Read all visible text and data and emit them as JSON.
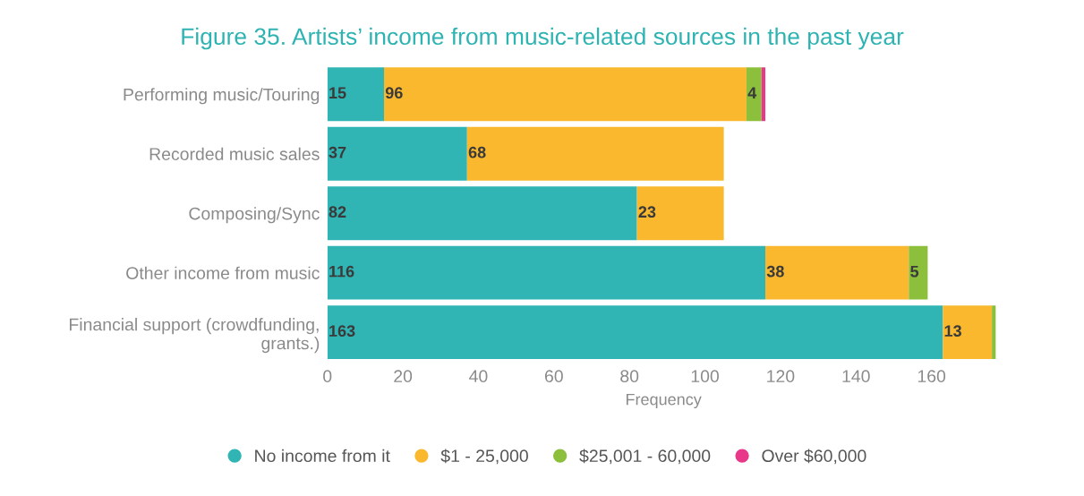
{
  "chart_data": {
    "type": "bar",
    "orientation": "horizontal",
    "stacked": true,
    "title": "Figure 35. Artists’ income from music-related sources in the past year",
    "xlabel": "Frequency",
    "categories": [
      "Performing music/Touring",
      "Recorded music sales",
      "Composing/Sync",
      "Other income from music",
      "Financial support (crowdfunding,\ngrants.)"
    ],
    "series": [
      {
        "name": "No income from it",
        "color": "#30b5b4",
        "values": [
          15,
          37,
          82,
          116,
          163
        ],
        "value_labels": [
          "15",
          "37",
          "82",
          "116",
          "163"
        ]
      },
      {
        "name": "$1 - 25,000",
        "color": "#f9b82e",
        "values": [
          96,
          68,
          23,
          38,
          13
        ],
        "value_labels": [
          "96",
          "68",
          "23",
          "38",
          "13"
        ]
      },
      {
        "name": "$25,001 - 60,000",
        "color": "#8bbf3c",
        "values": [
          4,
          null,
          null,
          5,
          1
        ],
        "value_labels": [
          "4",
          null,
          null,
          "5",
          null
        ]
      },
      {
        "name": "Over $60,000",
        "color": "#e8388a",
        "values": [
          1,
          null,
          null,
          null,
          null
        ],
        "value_labels": [
          null,
          null,
          null,
          null,
          null
        ]
      }
    ],
    "xlim": [
      0,
      178
    ],
    "xticks": [
      0,
      20,
      40,
      60,
      80,
      100,
      120,
      140,
      160
    ],
    "grid": false,
    "legend": "bottom"
  }
}
